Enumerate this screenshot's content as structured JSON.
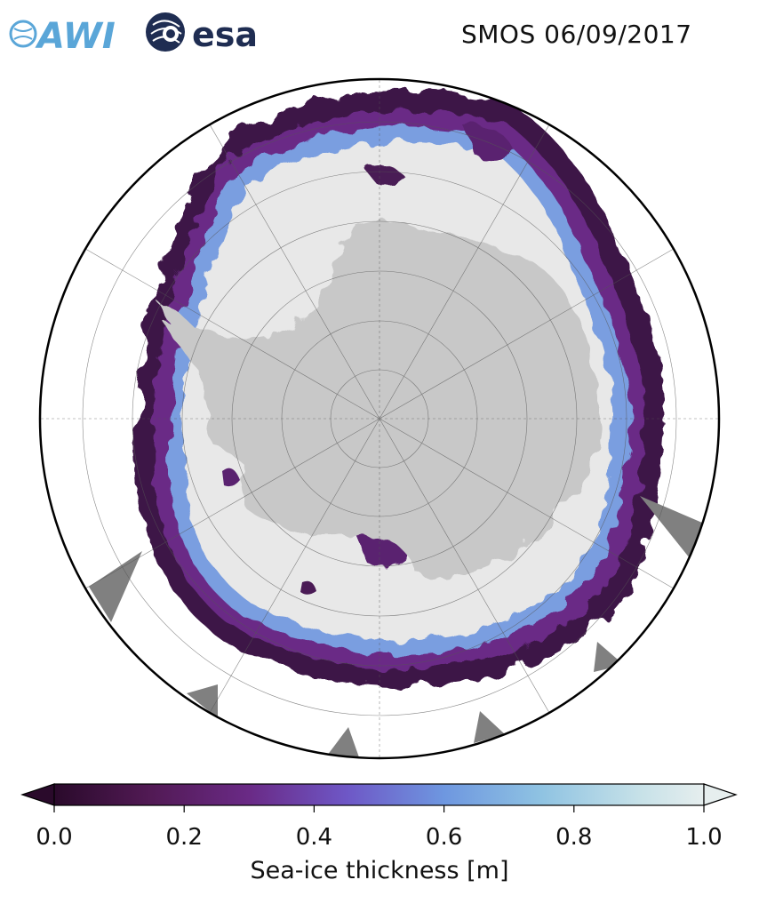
{
  "header": {
    "awi_logo_text": "AWI",
    "esa_logo_text": "esa",
    "title": "SMOS 06/09/2017"
  },
  "map": {
    "projection": "south-polar-stereographic",
    "land_color": "#c8c8c8",
    "ice_full_color": "#e8e8e8",
    "missing_color": "#808080",
    "frame_color": "#000000"
  },
  "colorbar": {
    "label": "Sea-ice thickness [m]",
    "ticks": [
      "0.0",
      "0.2",
      "0.4",
      "0.6",
      "0.8",
      "1.0"
    ],
    "tick_values": [
      0.0,
      0.2,
      0.4,
      0.6,
      0.8,
      1.0
    ],
    "range": [
      0.0,
      1.0
    ],
    "extend": "both",
    "colormap_stops": [
      {
        "v": 0.0,
        "c": "#2a0a2b"
      },
      {
        "v": 0.15,
        "c": "#521a55"
      },
      {
        "v": 0.3,
        "c": "#6a2a86"
      },
      {
        "v": 0.45,
        "c": "#6e57c6"
      },
      {
        "v": 0.6,
        "c": "#6e97e0"
      },
      {
        "v": 0.75,
        "c": "#8fc3e2"
      },
      {
        "v": 0.9,
        "c": "#c6e1e8"
      },
      {
        "v": 1.0,
        "c": "#e6eeee"
      }
    ]
  }
}
